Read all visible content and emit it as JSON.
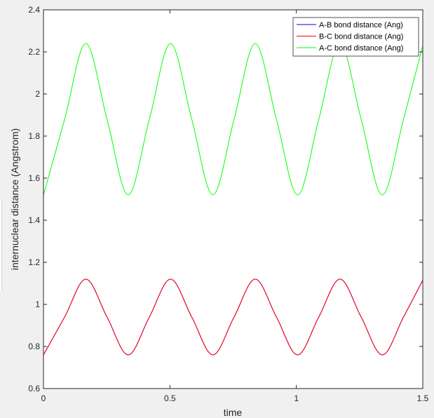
{
  "chart_data": {
    "type": "line",
    "title": "",
    "xlabel": "time",
    "ylabel": "internuclear distance (Angstrom)",
    "xlim": [
      0,
      1.5
    ],
    "ylim": [
      0.6,
      2.4
    ],
    "xticks": [
      "0",
      "0.5",
      "1",
      "1.5"
    ],
    "yticks": [
      "0.6",
      "0.8",
      "1",
      "1.2",
      "1.4",
      "1.6",
      "1.8",
      "2",
      "2.2",
      "2.4"
    ],
    "xtick_values": [
      0,
      0.5,
      1,
      1.5
    ],
    "ytick_values": [
      0.6,
      0.8,
      1.0,
      1.2,
      1.4,
      1.6,
      1.8,
      2.0,
      2.2,
      2.4
    ],
    "grid": false,
    "legend_position": "top-right",
    "series": [
      {
        "name": "A-B bond distance (Ang)",
        "color": "#0000ff",
        "x": [
          0,
          0.0838,
          0.1675,
          0.2513,
          0.335,
          0.4188,
          0.5025,
          0.5863,
          0.67,
          0.7538,
          0.8375,
          0.9213,
          1.005,
          1.0888,
          1.1725,
          1.2563,
          1.34,
          1.4238,
          1.5
        ],
        "y": [
          0.76,
          0.94,
          1.12,
          0.94,
          0.76,
          0.94,
          1.12,
          0.94,
          0.76,
          0.94,
          1.12,
          0.94,
          0.76,
          0.94,
          1.12,
          0.94,
          0.76,
          0.94,
          1.115
        ]
      },
      {
        "name": "B-C bond distance (Ang)",
        "color": "#ff0000",
        "x": [
          0,
          0.0838,
          0.1675,
          0.2513,
          0.335,
          0.4188,
          0.5025,
          0.5863,
          0.67,
          0.7538,
          0.8375,
          0.9213,
          1.005,
          1.0888,
          1.1725,
          1.2563,
          1.34,
          1.4238,
          1.5
        ],
        "y": [
          0.76,
          0.94,
          1.12,
          0.94,
          0.76,
          0.94,
          1.12,
          0.94,
          0.76,
          0.94,
          1.12,
          0.94,
          0.76,
          0.94,
          1.12,
          0.94,
          0.76,
          0.94,
          1.115
        ]
      },
      {
        "name": "A-C bond distance (Ang)",
        "color": "#00ff00",
        "x": [
          0,
          0.0838,
          0.1675,
          0.2513,
          0.335,
          0.4188,
          0.5025,
          0.5863,
          0.67,
          0.7538,
          0.8375,
          0.9213,
          1.005,
          1.0888,
          1.1725,
          1.2563,
          1.34,
          1.4238,
          1.5
        ],
        "y": [
          1.52,
          1.88,
          2.24,
          1.88,
          1.52,
          1.88,
          2.24,
          1.88,
          1.52,
          1.88,
          2.24,
          1.88,
          1.52,
          1.88,
          2.24,
          1.88,
          1.52,
          1.88,
          2.23
        ]
      }
    ]
  }
}
